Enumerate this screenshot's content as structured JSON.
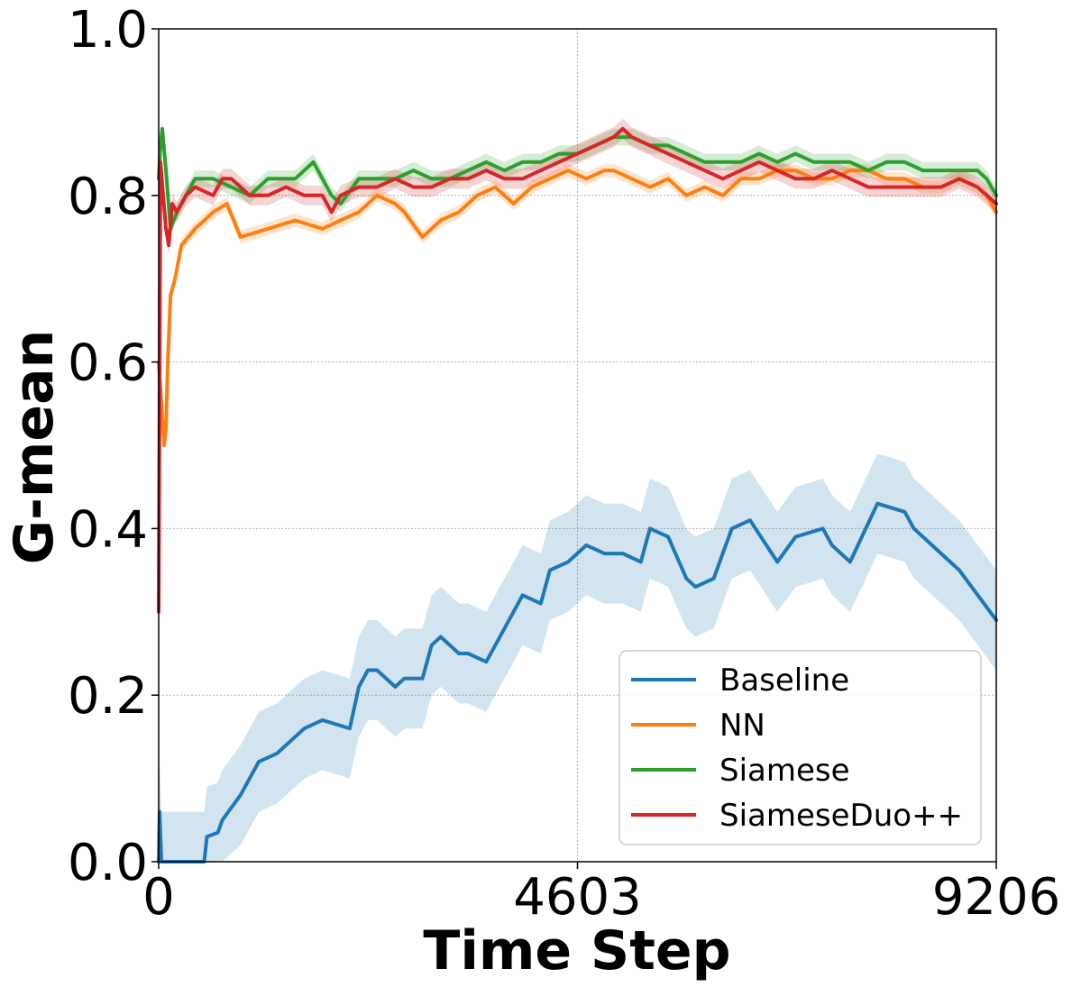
{
  "chart_data": {
    "type": "line",
    "title": "",
    "xlabel": "Time Step",
    "ylabel": "G-mean",
    "xlim": [
      0,
      9206
    ],
    "ylim": [
      0,
      1.0
    ],
    "grid": true,
    "legend_position": "bottom-right",
    "xticks": [
      0,
      4603,
      9206
    ],
    "xtick_labels": [
      "0",
      "4603",
      "9206"
    ],
    "yticks": [
      0.0,
      0.2,
      0.4,
      0.6,
      0.8,
      1.0
    ],
    "ytick_labels": [
      "0.0",
      "0.2",
      "0.4",
      "0.6",
      "0.8",
      "1.0"
    ],
    "series": [
      {
        "name": "Baseline",
        "color": "#1f77b4",
        "band_half_width": 0.06,
        "x": [
          0,
          10,
          30,
          500,
          530,
          650,
          700,
          900,
          1100,
          1300,
          1600,
          1800,
          2100,
          2200,
          2300,
          2400,
          2600,
          2700,
          2900,
          3000,
          3100,
          3300,
          3400,
          3600,
          3800,
          3900,
          4000,
          4200,
          4300,
          4500,
          4600,
          4700,
          4900,
          5000,
          5100,
          5300,
          5400,
          5600,
          5800,
          5900,
          6100,
          6300,
          6500,
          6800,
          7000,
          7300,
          7400,
          7600,
          7900,
          8200,
          8300,
          8500,
          8800,
          9206
        ],
        "y": [
          0.0,
          0.06,
          0.0,
          0.0,
          0.03,
          0.035,
          0.05,
          0.08,
          0.12,
          0.13,
          0.16,
          0.17,
          0.16,
          0.21,
          0.23,
          0.23,
          0.21,
          0.22,
          0.22,
          0.26,
          0.27,
          0.25,
          0.25,
          0.24,
          0.28,
          0.3,
          0.32,
          0.31,
          0.35,
          0.36,
          0.37,
          0.38,
          0.37,
          0.37,
          0.37,
          0.36,
          0.4,
          0.39,
          0.34,
          0.33,
          0.34,
          0.4,
          0.41,
          0.36,
          0.39,
          0.4,
          0.38,
          0.36,
          0.43,
          0.42,
          0.4,
          0.38,
          0.35,
          0.29
        ]
      },
      {
        "name": "NN",
        "color": "#ff7f0e",
        "band_half_width": 0.008,
        "x": [
          0,
          30,
          60,
          80,
          100,
          130,
          180,
          250,
          400,
          600,
          750,
          900,
          1200,
          1500,
          1800,
          2000,
          2200,
          2400,
          2600,
          2700,
          2900,
          3100,
          3300,
          3500,
          3700,
          3900,
          4100,
          4300,
          4500,
          4700,
          4900,
          5000,
          5200,
          5400,
          5600,
          5800,
          6000,
          6200,
          6400,
          6600,
          6800,
          7000,
          7200,
          7400,
          7600,
          7800,
          8000,
          8200,
          8400,
          8600,
          8800,
          9000,
          9100,
          9206
        ],
        "y": [
          0.6,
          0.55,
          0.5,
          0.52,
          0.6,
          0.68,
          0.7,
          0.74,
          0.76,
          0.78,
          0.79,
          0.75,
          0.76,
          0.77,
          0.76,
          0.77,
          0.78,
          0.8,
          0.79,
          0.78,
          0.75,
          0.77,
          0.78,
          0.8,
          0.81,
          0.79,
          0.81,
          0.82,
          0.83,
          0.82,
          0.83,
          0.83,
          0.82,
          0.81,
          0.82,
          0.8,
          0.81,
          0.8,
          0.82,
          0.82,
          0.83,
          0.83,
          0.82,
          0.82,
          0.83,
          0.83,
          0.82,
          0.82,
          0.81,
          0.81,
          0.82,
          0.81,
          0.8,
          0.78
        ]
      },
      {
        "name": "Siamese",
        "color": "#2ca02c",
        "band_half_width": 0.01,
        "x": [
          0,
          20,
          40,
          80,
          130,
          200,
          300,
          400,
          600,
          800,
          1000,
          1200,
          1500,
          1700,
          1900,
          2000,
          2200,
          2400,
          2600,
          2800,
          3000,
          3200,
          3400,
          3600,
          3800,
          4000,
          4200,
          4400,
          4600,
          4800,
          5000,
          5200,
          5400,
          5600,
          5800,
          6000,
          6200,
          6400,
          6600,
          6800,
          7000,
          7200,
          7400,
          7600,
          7800,
          8000,
          8200,
          8400,
          8600,
          8800,
          9000,
          9100,
          9206
        ],
        "y": [
          0.82,
          0.86,
          0.88,
          0.83,
          0.76,
          0.78,
          0.8,
          0.82,
          0.82,
          0.81,
          0.8,
          0.82,
          0.82,
          0.84,
          0.8,
          0.79,
          0.82,
          0.82,
          0.82,
          0.83,
          0.82,
          0.82,
          0.83,
          0.84,
          0.83,
          0.84,
          0.84,
          0.85,
          0.85,
          0.86,
          0.87,
          0.87,
          0.86,
          0.86,
          0.85,
          0.84,
          0.84,
          0.84,
          0.85,
          0.84,
          0.85,
          0.84,
          0.84,
          0.84,
          0.83,
          0.84,
          0.84,
          0.83,
          0.83,
          0.83,
          0.83,
          0.82,
          0.8
        ]
      },
      {
        "name": "SiameseDuo++",
        "color": "#d62728",
        "band_half_width": 0.012,
        "x": [
          0,
          20,
          50,
          80,
          110,
          150,
          200,
          300,
          400,
          600,
          700,
          800,
          1000,
          1200,
          1400,
          1600,
          1800,
          1900,
          2000,
          2200,
          2400,
          2600,
          2800,
          3000,
          3200,
          3400,
          3600,
          3800,
          4000,
          4200,
          4400,
          4600,
          4800,
          5000,
          5100,
          5200,
          5400,
          5600,
          5800,
          6000,
          6200,
          6400,
          6600,
          6800,
          7000,
          7200,
          7400,
          7600,
          7800,
          8000,
          8200,
          8400,
          8600,
          8800,
          9000,
          9206
        ],
        "y": [
          0.3,
          0.84,
          0.8,
          0.76,
          0.74,
          0.79,
          0.78,
          0.8,
          0.81,
          0.8,
          0.82,
          0.82,
          0.8,
          0.8,
          0.81,
          0.8,
          0.8,
          0.78,
          0.8,
          0.81,
          0.81,
          0.82,
          0.81,
          0.81,
          0.82,
          0.82,
          0.83,
          0.82,
          0.82,
          0.83,
          0.84,
          0.85,
          0.86,
          0.87,
          0.88,
          0.87,
          0.86,
          0.85,
          0.84,
          0.83,
          0.82,
          0.83,
          0.84,
          0.83,
          0.82,
          0.82,
          0.83,
          0.82,
          0.81,
          0.81,
          0.81,
          0.81,
          0.81,
          0.82,
          0.81,
          0.79
        ]
      }
    ]
  }
}
